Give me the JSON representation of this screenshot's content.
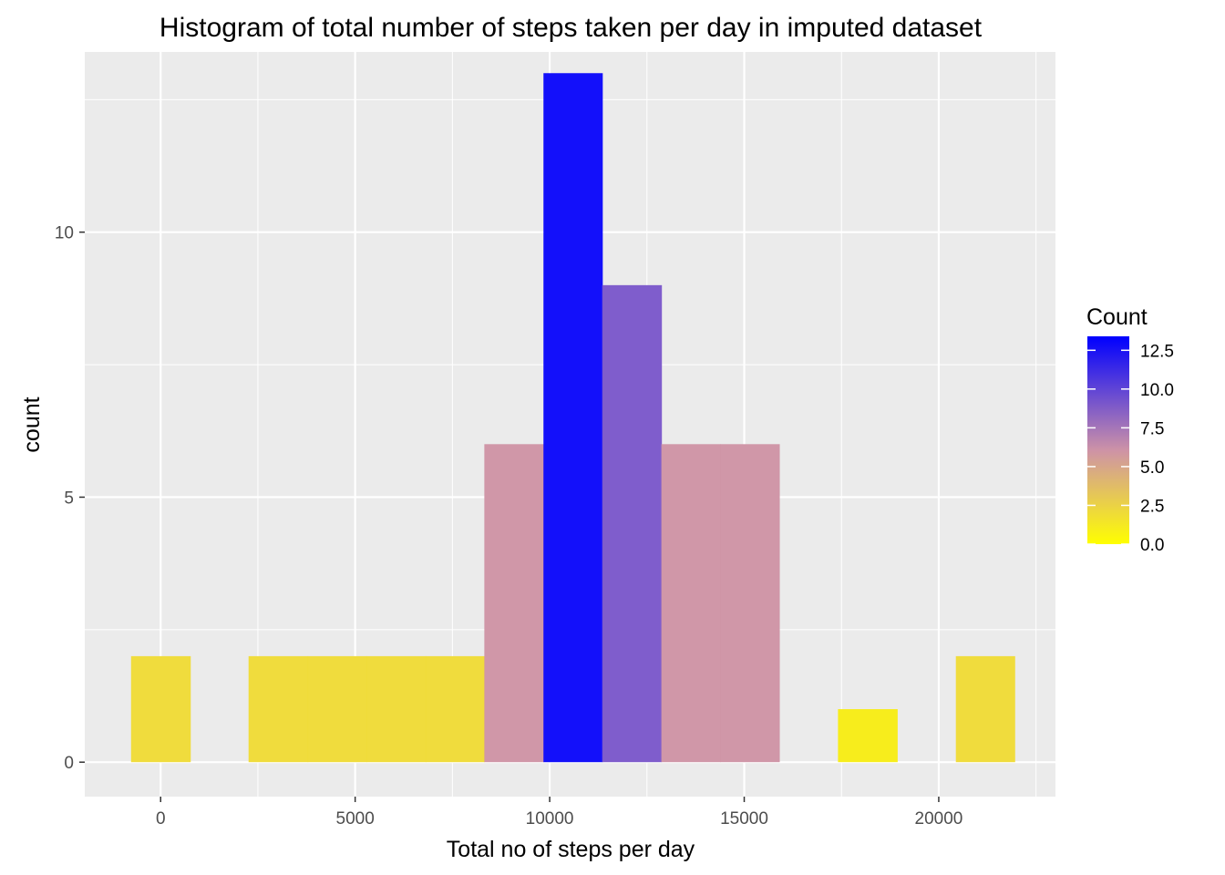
{
  "chart_data": {
    "type": "bar",
    "title": "Histogram of total number of steps taken per day in imputed dataset",
    "xlabel": "Total no of steps per day",
    "ylabel": "count",
    "xlim": [
      -1950,
      23000
    ],
    "ylim": [
      -0.65,
      13.4
    ],
    "x_ticks": [
      0,
      5000,
      10000,
      15000,
      20000
    ],
    "x_tick_labels": [
      "0",
      "5000",
      "10000",
      "15000",
      "20000"
    ],
    "y_ticks": [
      0,
      5,
      10
    ],
    "y_tick_labels": [
      "0",
      "5",
      "10"
    ],
    "grid": true,
    "bins": [
      {
        "x0": -760,
        "x1": 760,
        "count": 2
      },
      {
        "x0": 760,
        "x1": 2260,
        "count": 0
      },
      {
        "x0": 2260,
        "x1": 3780,
        "count": 2
      },
      {
        "x0": 3780,
        "x1": 5290,
        "count": 2
      },
      {
        "x0": 5290,
        "x1": 6810,
        "count": 2
      },
      {
        "x0": 6810,
        "x1": 8320,
        "count": 2
      },
      {
        "x0": 8320,
        "x1": 9840,
        "count": 6
      },
      {
        "x0": 9840,
        "x1": 11350,
        "count": 13
      },
      {
        "x0": 11350,
        "x1": 12870,
        "count": 9
      },
      {
        "x0": 12870,
        "x1": 14380,
        "count": 6
      },
      {
        "x0": 14380,
        "x1": 15900,
        "count": 6
      },
      {
        "x0": 15900,
        "x1": 17410,
        "count": 0
      },
      {
        "x0": 17410,
        "x1": 18930,
        "count": 1
      },
      {
        "x0": 18930,
        "x1": 20440,
        "count": 0
      },
      {
        "x0": 20440,
        "x1": 21950,
        "count": 2
      }
    ],
    "legend": {
      "title": "Count",
      "position": "right",
      "range": [
        0,
        13.4
      ],
      "ticks": [
        0,
        2.5,
        5,
        7.5,
        10,
        12.5
      ],
      "tick_labels": [
        "0.0",
        "2.5",
        "5.0",
        "7.5",
        "10.0",
        "12.5"
      ]
    },
    "colors": {
      "low": "#ffff00",
      "mid": "#ce93a6",
      "high": "#0000ff",
      "panel": "#ebebeb",
      "grid": "#ffffff"
    }
  }
}
